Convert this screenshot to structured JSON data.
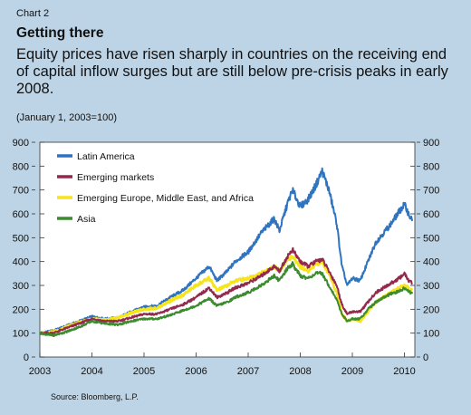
{
  "header": {
    "label": "Chart 2",
    "title": "Getting there",
    "subtitle": "Equity prices have risen sharply in countries on the receiving end of capital inflow surges but are still below pre-crisis peaks in early 2008.",
    "unit": "(January 1, 2003=100)"
  },
  "source": "Source: Bloomberg, L.P.",
  "chart_data": {
    "type": "line",
    "ylim": [
      0,
      900
    ],
    "xlim": [
      2003,
      2010.2
    ],
    "yticks": [
      0,
      100,
      200,
      300,
      400,
      500,
      600,
      700,
      800,
      900
    ],
    "xticks": [
      2003,
      2004,
      2005,
      2006,
      2007,
      2008,
      2009,
      2010
    ],
    "xtick_labels": [
      "2003",
      "2004",
      "2005",
      "2006",
      "2007",
      "2008",
      "2009",
      "2010"
    ],
    "grid": false,
    "legend_position": "top-left",
    "series": [
      {
        "name": "Latin America",
        "color": "#2f74c0",
        "points": [
          [
            2003.0,
            100
          ],
          [
            2003.25,
            110
          ],
          [
            2003.5,
            130
          ],
          [
            2003.75,
            150
          ],
          [
            2004.0,
            170
          ],
          [
            2004.25,
            160
          ],
          [
            2004.5,
            165
          ],
          [
            2004.75,
            190
          ],
          [
            2005.0,
            210
          ],
          [
            2005.25,
            215
          ],
          [
            2005.5,
            250
          ],
          [
            2005.75,
            280
          ],
          [
            2006.0,
            330
          ],
          [
            2006.25,
            380
          ],
          [
            2006.4,
            320
          ],
          [
            2006.6,
            360
          ],
          [
            2006.75,
            400
          ],
          [
            2007.0,
            440
          ],
          [
            2007.25,
            520
          ],
          [
            2007.5,
            580
          ],
          [
            2007.6,
            530
          ],
          [
            2007.75,
            640
          ],
          [
            2007.85,
            700
          ],
          [
            2008.0,
            630
          ],
          [
            2008.15,
            660
          ],
          [
            2008.3,
            720
          ],
          [
            2008.42,
            780
          ],
          [
            2008.55,
            700
          ],
          [
            2008.7,
            560
          ],
          [
            2008.8,
            380
          ],
          [
            2008.9,
            300
          ],
          [
            2009.0,
            330
          ],
          [
            2009.15,
            320
          ],
          [
            2009.3,
            400
          ],
          [
            2009.45,
            480
          ],
          [
            2009.6,
            520
          ],
          [
            2009.75,
            560
          ],
          [
            2009.9,
            610
          ],
          [
            2010.0,
            640
          ],
          [
            2010.08,
            600
          ],
          [
            2010.15,
            570
          ]
        ]
      },
      {
        "name": "Emerging markets",
        "color": "#93294d",
        "points": [
          [
            2003.0,
            100
          ],
          [
            2003.25,
            100
          ],
          [
            2003.5,
            120
          ],
          [
            2003.75,
            140
          ],
          [
            2004.0,
            160
          ],
          [
            2004.25,
            150
          ],
          [
            2004.5,
            150
          ],
          [
            2004.75,
            165
          ],
          [
            2005.0,
            180
          ],
          [
            2005.25,
            180
          ],
          [
            2005.5,
            200
          ],
          [
            2005.75,
            220
          ],
          [
            2006.0,
            250
          ],
          [
            2006.25,
            290
          ],
          [
            2006.4,
            250
          ],
          [
            2006.6,
            270
          ],
          [
            2006.75,
            290
          ],
          [
            2007.0,
            310
          ],
          [
            2007.25,
            340
          ],
          [
            2007.5,
            380
          ],
          [
            2007.6,
            360
          ],
          [
            2007.75,
            420
          ],
          [
            2007.85,
            450
          ],
          [
            2008.0,
            400
          ],
          [
            2008.15,
            380
          ],
          [
            2008.3,
            400
          ],
          [
            2008.42,
            410
          ],
          [
            2008.55,
            360
          ],
          [
            2008.7,
            300
          ],
          [
            2008.8,
            220
          ],
          [
            2008.9,
            180
          ],
          [
            2009.0,
            190
          ],
          [
            2009.15,
            190
          ],
          [
            2009.3,
            230
          ],
          [
            2009.45,
            270
          ],
          [
            2009.6,
            290
          ],
          [
            2009.75,
            310
          ],
          [
            2009.9,
            330
          ],
          [
            2010.0,
            350
          ],
          [
            2010.08,
            320
          ],
          [
            2010.15,
            310
          ]
        ]
      },
      {
        "name": "Emerging Europe, Middle East, and Africa",
        "color": "#f6e41c",
        "points": [
          [
            2003.0,
            100
          ],
          [
            2003.25,
            105
          ],
          [
            2003.5,
            125
          ],
          [
            2003.75,
            145
          ],
          [
            2004.0,
            160
          ],
          [
            2004.25,
            155
          ],
          [
            2004.5,
            165
          ],
          [
            2004.75,
            185
          ],
          [
            2005.0,
            200
          ],
          [
            2005.25,
            205
          ],
          [
            2005.5,
            235
          ],
          [
            2005.75,
            260
          ],
          [
            2006.0,
            300
          ],
          [
            2006.25,
            330
          ],
          [
            2006.4,
            280
          ],
          [
            2006.6,
            300
          ],
          [
            2006.75,
            320
          ],
          [
            2007.0,
            330
          ],
          [
            2007.25,
            350
          ],
          [
            2007.5,
            380
          ],
          [
            2007.6,
            360
          ],
          [
            2007.75,
            410
          ],
          [
            2007.85,
            420
          ],
          [
            2008.0,
            380
          ],
          [
            2008.15,
            360
          ],
          [
            2008.3,
            390
          ],
          [
            2008.42,
            400
          ],
          [
            2008.55,
            350
          ],
          [
            2008.7,
            270
          ],
          [
            2008.8,
            180
          ],
          [
            2008.9,
            150
          ],
          [
            2009.0,
            160
          ],
          [
            2009.15,
            150
          ],
          [
            2009.3,
            190
          ],
          [
            2009.45,
            230
          ],
          [
            2009.6,
            250
          ],
          [
            2009.75,
            270
          ],
          [
            2009.9,
            290
          ],
          [
            2010.0,
            300
          ],
          [
            2010.08,
            290
          ],
          [
            2010.15,
            280
          ]
        ]
      },
      {
        "name": "Asia",
        "color": "#3c8b2f",
        "points": [
          [
            2003.0,
            100
          ],
          [
            2003.25,
            90
          ],
          [
            2003.5,
            105
          ],
          [
            2003.75,
            125
          ],
          [
            2004.0,
            150
          ],
          [
            2004.25,
            140
          ],
          [
            2004.5,
            135
          ],
          [
            2004.75,
            150
          ],
          [
            2005.0,
            160
          ],
          [
            2005.25,
            160
          ],
          [
            2005.5,
            175
          ],
          [
            2005.75,
            195
          ],
          [
            2006.0,
            215
          ],
          [
            2006.25,
            245
          ],
          [
            2006.4,
            215
          ],
          [
            2006.6,
            230
          ],
          [
            2006.75,
            250
          ],
          [
            2007.0,
            270
          ],
          [
            2007.25,
            300
          ],
          [
            2007.5,
            340
          ],
          [
            2007.6,
            320
          ],
          [
            2007.75,
            370
          ],
          [
            2007.85,
            390
          ],
          [
            2008.0,
            340
          ],
          [
            2008.15,
            330
          ],
          [
            2008.3,
            350
          ],
          [
            2008.42,
            350
          ],
          [
            2008.55,
            300
          ],
          [
            2008.7,
            240
          ],
          [
            2008.8,
            180
          ],
          [
            2008.9,
            150
          ],
          [
            2009.0,
            160
          ],
          [
            2009.15,
            160
          ],
          [
            2009.3,
            200
          ],
          [
            2009.45,
            230
          ],
          [
            2009.6,
            250
          ],
          [
            2009.75,
            265
          ],
          [
            2009.9,
            275
          ],
          [
            2010.0,
            290
          ],
          [
            2010.08,
            275
          ],
          [
            2010.15,
            265
          ]
        ]
      }
    ]
  }
}
